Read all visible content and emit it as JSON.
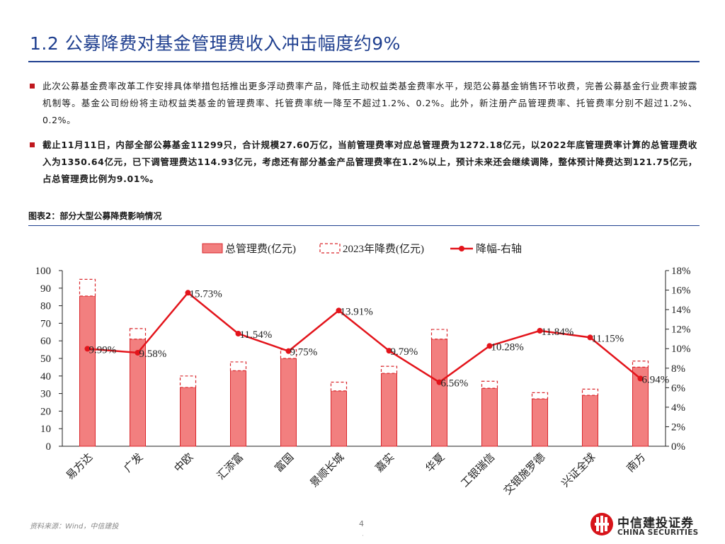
{
  "page": {
    "title": "1.2 公募降费对基金管理费收入冲击幅度约9%",
    "bullets": [
      "此次公募基金费率改革工作安排具体举措包括推出更多浮动费率产品，降低主动权益类基金费率水平，规范公募基金销售环节收费，完善公募基金行业费率披露机制等。基金公司纷纷将主动权益类基金的管理费率、托管费率统一降至不超过1.2%、0.2%。此外，新注册产品管理费率、托管费率分别不超过1.2%、0.2%。",
      "截止11月11日，内部全部公募基金11299只，合计规模27.60万亿，当前管理费率对应总管理费为1272.18亿元，以2022年底管理费率计算的总管理费收入为1350.64亿元，已下调管理费达114.93亿元，考虑还有部分基金产品管理费率在1.2%以上，预计未来还会继续调降，整体预计降费达到121.75亿元，占总管理费比例为9.01%。"
    ],
    "figure_title": "图表2：部分大型公募降费影响情况",
    "source": "资料来源：Wind，中信建投",
    "page_number": "4",
    "page_dot": "·",
    "logo": {
      "cn": "中信建投证券",
      "en": "CHINA SECURITIES"
    }
  },
  "colors": {
    "title": "#1f3f8f",
    "bar_fill": "#f27f7f",
    "bar_stroke": "#d9262b",
    "line": "#e3141b",
    "bullet": "#c0181e"
  },
  "chart_data": {
    "type": "bar",
    "title": "",
    "categories": [
      "易方达",
      "广发",
      "中欧",
      "汇添富",
      "富国",
      "景顺长城",
      "嘉实",
      "华夏",
      "工银瑞信",
      "交银施罗德",
      "兴证全球",
      "南方"
    ],
    "series": [
      {
        "name": "总管理费(亿元)",
        "type": "bar",
        "axis": "left",
        "values": [
          85.5,
          61,
          33.5,
          43,
          50,
          31.5,
          41.5,
          61,
          33,
          27,
          29,
          45
        ]
      },
      {
        "name": "2023年降费(亿元)",
        "type": "bar-dashed",
        "axis": "left",
        "values": [
          9.5,
          6,
          6.5,
          5,
          5,
          5,
          4,
          5.5,
          4,
          3.5,
          3.5,
          3.5
        ]
      },
      {
        "name": "降幅-右轴",
        "type": "line",
        "axis": "right",
        "values": [
          9.99,
          9.58,
          15.73,
          11.54,
          9.75,
          13.91,
          9.79,
          6.56,
          10.28,
          11.84,
          11.15,
          6.94
        ],
        "labels": [
          "9.99%",
          "9.58%",
          "15.73%",
          "11.54%",
          "9.75%",
          "13.91%",
          "9.79%",
          "6.56%",
          "10.28%",
          "11.84%",
          "11.15%",
          "6.94%"
        ]
      }
    ],
    "yleft": {
      "min": 0,
      "max": 100,
      "ticks": [
        "0",
        "10",
        "20",
        "30",
        "40",
        "50",
        "60",
        "70",
        "80",
        "90",
        "100"
      ]
    },
    "yright": {
      "min": 0,
      "max": 18,
      "ticks": [
        "0%",
        "2%",
        "4%",
        "6%",
        "8%",
        "10%",
        "12%",
        "14%",
        "16%",
        "18%"
      ]
    },
    "legend": "top",
    "grid": false
  }
}
